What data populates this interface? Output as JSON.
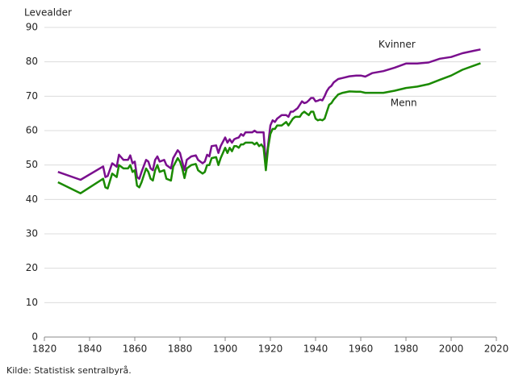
{
  "chart_data": {
    "type": "line",
    "y_label": "Levealder",
    "source": "Kilde: Statistisk sentralbyrå.",
    "x": [
      1826,
      1836,
      1846,
      1847,
      1848,
      1850,
      1852,
      1853,
      1855,
      1857,
      1858,
      1859,
      1860,
      1861,
      1862,
      1863,
      1865,
      1866,
      1867,
      1868,
      1869,
      1870,
      1871,
      1873,
      1874,
      1876,
      1877,
      1879,
      1880,
      1881,
      1882,
      1883,
      1885,
      1887,
      1888,
      1889,
      1890,
      1891,
      1892,
      1893,
      1894,
      1896,
      1897,
      1898,
      1900,
      1901,
      1902,
      1903,
      1904,
      1905,
      1906,
      1907,
      1908,
      1909,
      1910,
      1912,
      1913,
      1914,
      1915,
      1916,
      1917,
      1918,
      1919,
      1920,
      1921,
      1922,
      1923,
      1925,
      1927,
      1928,
      1929,
      1930,
      1931,
      1932,
      1933,
      1934,
      1935,
      1936,
      1937,
      1938,
      1939,
      1940,
      1941,
      1942,
      1943,
      1944,
      1945,
      1946,
      1947,
      1948,
      1950,
      1952,
      1955,
      1958,
      1960,
      1962,
      1965,
      1970,
      1975,
      1980,
      1985,
      1990,
      1995,
      2000,
      2005,
      2010,
      2013
    ],
    "series": [
      {
        "name": "Kvinner",
        "color": "#7a0f8e",
        "values": [
          48.0,
          45.7,
          49.6,
          46.5,
          46.8,
          50.5,
          49.5,
          53,
          51.5,
          51.5,
          52.8,
          50.5,
          51,
          46.5,
          46,
          48,
          51.5,
          51,
          49,
          48.5,
          51.5,
          52.5,
          51,
          51.5,
          50,
          49,
          52,
          54.3,
          53.5,
          51,
          48.5,
          51.5,
          52.5,
          52.8,
          51.5,
          51,
          50.5,
          51,
          53,
          52.5,
          55.5,
          55.7,
          53.5,
          55.5,
          58,
          56.5,
          57.5,
          56.5,
          57.5,
          57.8,
          58,
          59,
          58.5,
          59.5,
          59.5,
          59.5,
          60,
          59.5,
          59.5,
          59.5,
          59.5,
          50.2,
          56,
          61.5,
          63,
          62.5,
          63.5,
          64.5,
          64.5,
          64,
          65.5,
          65.5,
          66,
          66.5,
          67.5,
          68.5,
          68,
          68.2,
          68.8,
          69.5,
          69.5,
          68.5,
          68.7,
          69,
          68.8,
          70,
          71.5,
          72.5,
          73,
          74,
          75,
          75.3,
          75.8,
          76,
          76,
          75.7,
          76.7,
          77.3,
          78.3,
          79.5,
          79.5,
          79.8,
          80.9,
          81.4,
          82.5,
          83.2,
          83.6
        ]
      },
      {
        "name": "Menn",
        "color": "#1a8a00",
        "values": [
          45,
          41.8,
          46,
          43.5,
          43.2,
          47.5,
          46.5,
          50,
          49,
          49,
          50,
          48,
          48.5,
          44,
          43.5,
          45,
          49,
          48,
          46,
          45.5,
          48.5,
          50,
          48,
          48.5,
          46,
          45.5,
          49.5,
          52,
          51,
          49,
          46.2,
          49,
          50,
          50.3,
          48.5,
          48,
          47.5,
          48,
          50,
          50,
          52,
          52.3,
          50,
          52,
          55,
          53.5,
          55,
          54,
          55.5,
          55.5,
          55,
          56,
          56,
          56.5,
          56.5,
          56.5,
          56,
          56.5,
          55.5,
          56,
          55,
          48.5,
          55,
          59,
          60.5,
          60.5,
          61.5,
          61.5,
          62.5,
          61.5,
          62.5,
          63.5,
          64,
          64,
          64,
          65,
          65.5,
          65,
          64.5,
          65.5,
          65.5,
          63.5,
          63,
          63.2,
          63,
          63.5,
          65.5,
          67.5,
          68,
          69,
          70.5,
          71,
          71.4,
          71.3,
          71.3,
          71,
          71,
          71,
          71.6,
          72.4,
          72.8,
          73.5,
          74.8,
          76,
          77.7,
          78.9,
          79.6
        ]
      }
    ],
    "xlim": [
      1820,
      2020
    ],
    "xticks": [
      1820,
      1840,
      1860,
      1880,
      1900,
      1920,
      1940,
      1960,
      1980,
      2000,
      2020
    ],
    "ylim": [
      0,
      90
    ],
    "yticks": [
      0,
      10,
      20,
      30,
      40,
      50,
      60,
      70,
      80,
      90
    ],
    "grid": true
  }
}
